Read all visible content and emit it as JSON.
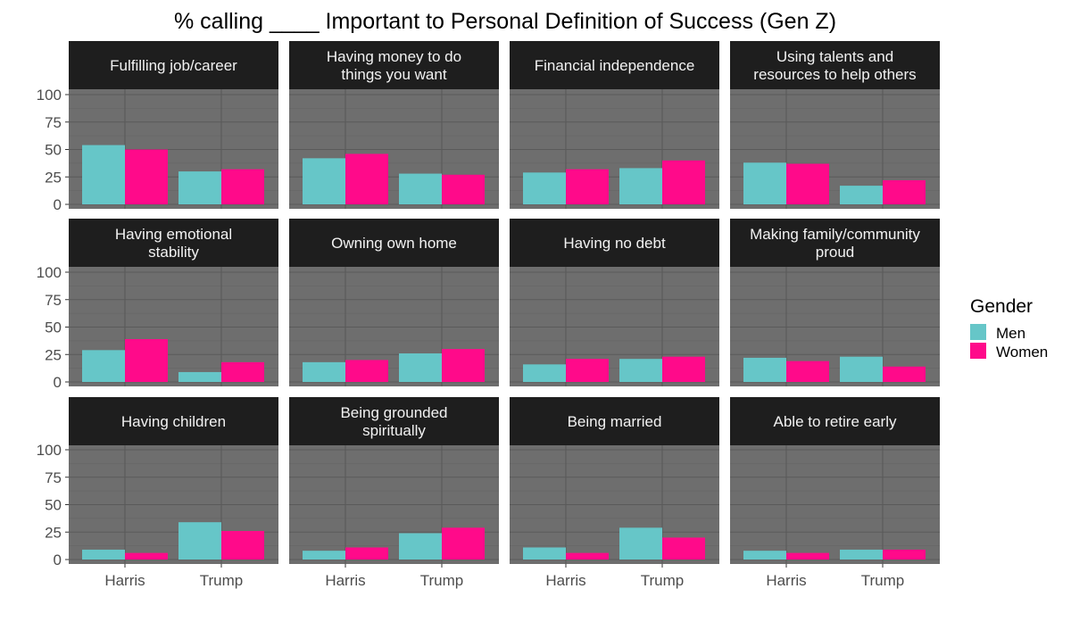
{
  "chart_data": {
    "type": "bar",
    "title": "% calling ____ Important to Personal Definition of Success (Gen Z)",
    "categories": [
      "Harris",
      "Trump"
    ],
    "ylim": [
      0,
      100
    ],
    "yticks": [
      0,
      25,
      50,
      75,
      100
    ],
    "grid": true,
    "panel_background": "#6e6e6e",
    "strip_background": "#1e1e1e",
    "legend": {
      "title": "Gender",
      "position": "right",
      "entries": [
        {
          "name": "Men",
          "color": "#66c6c8"
        },
        {
          "name": "Women",
          "color": "#ff0a8a"
        }
      ]
    },
    "facets": [
      {
        "label": [
          "Fulfilling job/career"
        ],
        "series": [
          {
            "name": "Men",
            "values": [
              54,
              30
            ]
          },
          {
            "name": "Women",
            "values": [
              50,
              32
            ]
          }
        ]
      },
      {
        "label": [
          "Having money to do",
          "things you want"
        ],
        "series": [
          {
            "name": "Men",
            "values": [
              42,
              28
            ]
          },
          {
            "name": "Women",
            "values": [
              46,
              27
            ]
          }
        ]
      },
      {
        "label": [
          "Financial independence"
        ],
        "series": [
          {
            "name": "Men",
            "values": [
              29,
              33
            ]
          },
          {
            "name": "Women",
            "values": [
              32,
              40
            ]
          }
        ]
      },
      {
        "label": [
          "Using talents and",
          "resources to help others"
        ],
        "series": [
          {
            "name": "Men",
            "values": [
              38,
              17
            ]
          },
          {
            "name": "Women",
            "values": [
              37,
              22
            ]
          }
        ]
      },
      {
        "label": [
          "Having emotional",
          "stability"
        ],
        "series": [
          {
            "name": "Men",
            "values": [
              29,
              9
            ]
          },
          {
            "name": "Women",
            "values": [
              39,
              18
            ]
          }
        ]
      },
      {
        "label": [
          "Owning own home"
        ],
        "series": [
          {
            "name": "Men",
            "values": [
              18,
              26
            ]
          },
          {
            "name": "Women",
            "values": [
              20,
              30
            ]
          }
        ]
      },
      {
        "label": [
          "Having no debt"
        ],
        "series": [
          {
            "name": "Men",
            "values": [
              16,
              21
            ]
          },
          {
            "name": "Women",
            "values": [
              21,
              23
            ]
          }
        ]
      },
      {
        "label": [
          "Making family/community",
          "proud"
        ],
        "series": [
          {
            "name": "Men",
            "values": [
              22,
              23
            ]
          },
          {
            "name": "Women",
            "values": [
              19,
              14
            ]
          }
        ]
      },
      {
        "label": [
          "Having children"
        ],
        "series": [
          {
            "name": "Men",
            "values": [
              9,
              34
            ]
          },
          {
            "name": "Women",
            "values": [
              6,
              26
            ]
          }
        ]
      },
      {
        "label": [
          "Being grounded",
          "spiritually"
        ],
        "series": [
          {
            "name": "Men",
            "values": [
              8,
              24
            ]
          },
          {
            "name": "Women",
            "values": [
              11,
              29
            ]
          }
        ]
      },
      {
        "label": [
          "Being married"
        ],
        "series": [
          {
            "name": "Men",
            "values": [
              11,
              29
            ]
          },
          {
            "name": "Women",
            "values": [
              6,
              20
            ]
          }
        ]
      },
      {
        "label": [
          "Able to retire early"
        ],
        "series": [
          {
            "name": "Men",
            "values": [
              8,
              9
            ]
          },
          {
            "name": "Women",
            "values": [
              6,
              9
            ]
          }
        ]
      }
    ]
  }
}
